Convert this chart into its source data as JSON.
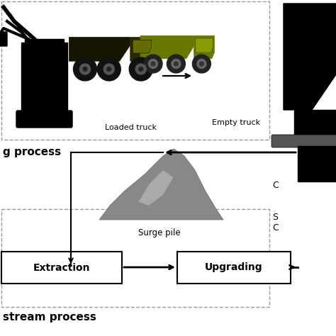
{
  "background_color": "#ffffff",
  "loaded_truck_label": "Loaded truck",
  "empty_truck_label": "Empty truck",
  "surge_pile_label": "Surge pile",
  "extraction_label": "Extraction",
  "upgrading_label": "Upgrading",
  "mining_process_label": "g process",
  "downstream_label": "stream process",
  "text_color": "#000000",
  "dashed_color": "#999999",
  "pile_color": "#888888",
  "pile_color2": "#aaaaaa",
  "truck_dark": "#1a1a00",
  "truck_highlight": "#6b7800",
  "truck_empty": "#6b7800",
  "truck_empty_light": "#8a9a00",
  "arrow_color": "#000000",
  "crusher_color": "#000000",
  "box_edge": "#000000"
}
